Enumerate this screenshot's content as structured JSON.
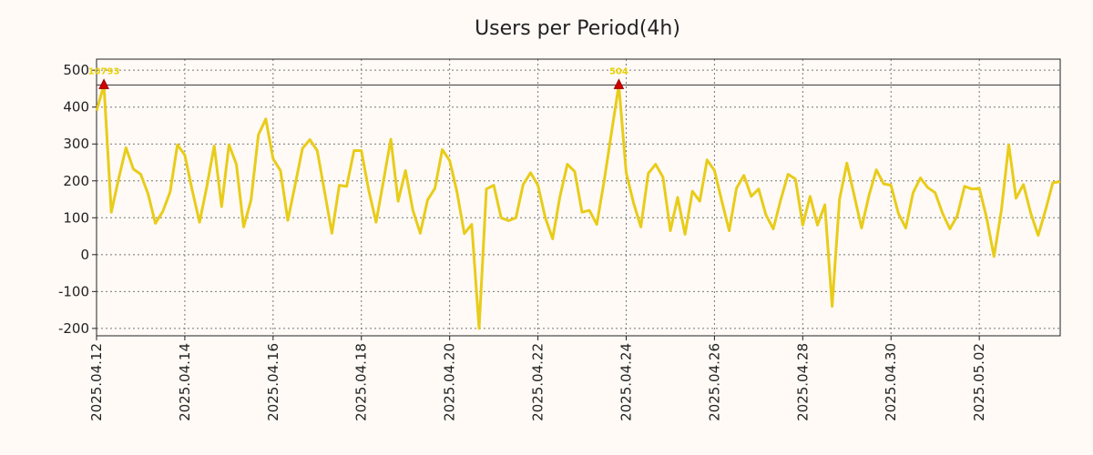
{
  "chart_data": {
    "type": "line",
    "title": "Users per Period(4h)",
    "xlabel": "",
    "ylabel": "",
    "ylim": [
      -220,
      530
    ],
    "xlim": [
      "2025-04-12 00:00",
      "2025-05-03 20:00"
    ],
    "x_step_hours": 4,
    "x_start": "2025-04-12 00:00",
    "y_ticks": [
      -200,
      -100,
      0,
      100,
      200,
      300,
      400,
      500
    ],
    "y_tick_labels": [
      "-200",
      "-100",
      "0",
      "100",
      "200",
      "300",
      "400",
      "500"
    ],
    "x_tick_labels": [
      "2025.04.12",
      "2025.04.14",
      "2025.04.16",
      "2025.04.18",
      "2025.04.20",
      "2025.04.22",
      "2025.04.24",
      "2025.04.26",
      "2025.04.28",
      "2025.04.30",
      "2025.05.02"
    ],
    "grid": true,
    "reference_line": 460,
    "series": [
      {
        "color": "#e8cc1a",
        "values": [
          390,
          460,
          115,
          205,
          290,
          232,
          218,
          165,
          85,
          117,
          170,
          298,
          270,
          175,
          88,
          185,
          295,
          130,
          298,
          245,
          75,
          148,
          325,
          368,
          260,
          228,
          93,
          190,
          288,
          312,
          282,
          170,
          58,
          188,
          185,
          282,
          282,
          175,
          88,
          200,
          313,
          145,
          228,
          120,
          58,
          148,
          180,
          285,
          255,
          170,
          57,
          82,
          -200,
          178,
          188,
          100,
          92,
          100,
          190,
          222,
          188,
          100,
          43,
          158,
          245,
          225,
          115,
          120,
          82,
          200,
          330,
          460,
          222,
          140,
          75,
          220,
          245,
          210,
          65,
          155,
          55,
          172,
          145,
          257,
          228,
          145,
          65,
          180,
          215,
          158,
          178,
          108,
          70,
          148,
          218,
          205,
          80,
          158,
          80,
          135,
          -140,
          150,
          248,
          160,
          72,
          160,
          230,
          192,
          188,
          112,
          72,
          168,
          208,
          182,
          168,
          112,
          70,
          105,
          185,
          178,
          180,
          100,
          -5,
          120,
          298,
          153,
          190,
          112,
          52,
          120,
          195,
          198
        ]
      }
    ],
    "annotations": [
      {
        "index": 1,
        "value": 460,
        "label": "10793"
      },
      {
        "index": 71,
        "value": 460,
        "label": "504"
      }
    ]
  }
}
